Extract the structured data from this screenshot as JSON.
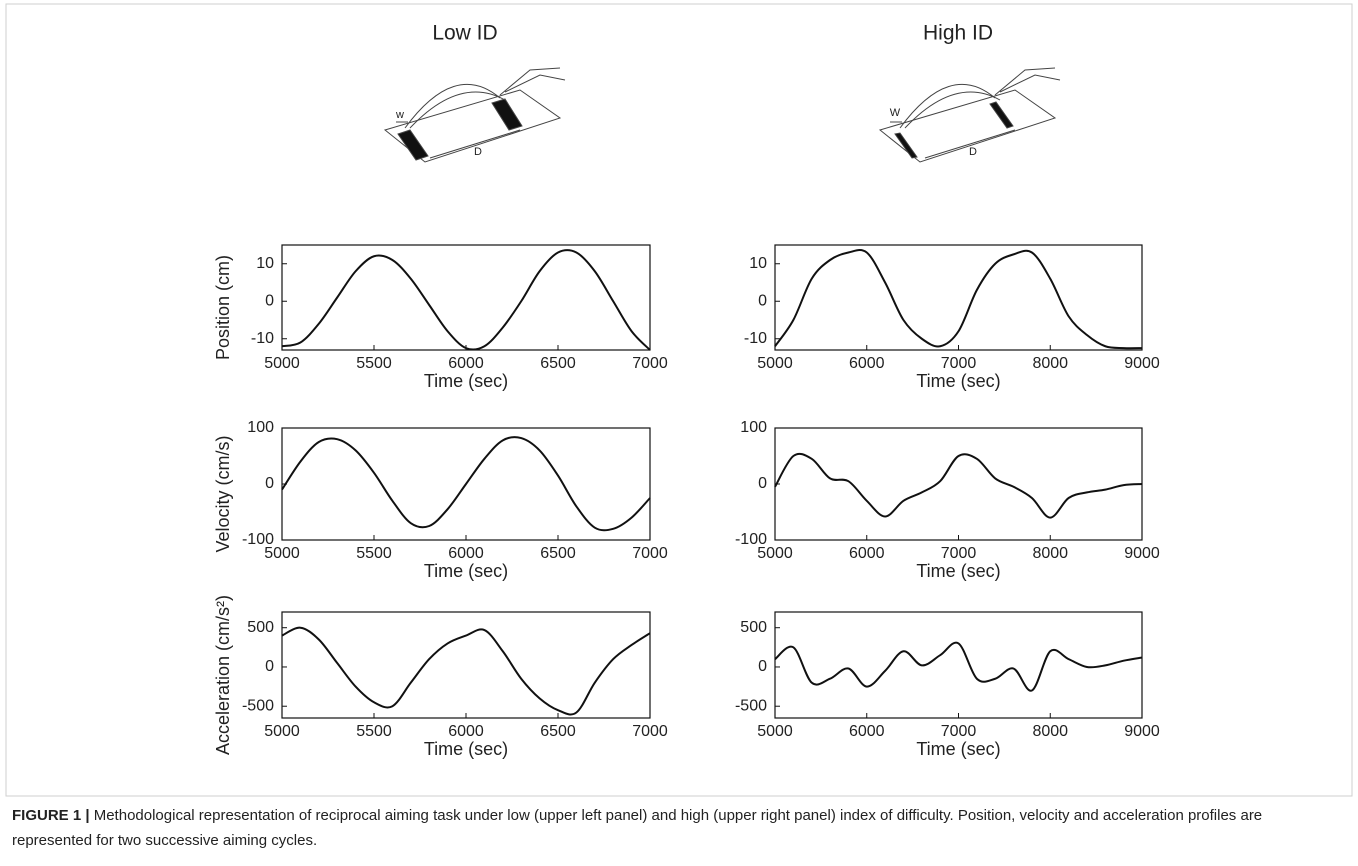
{
  "column_titles": [
    "Low ID",
    "High ID"
  ],
  "illustrations": [
    {
      "width_label": "w",
      "distance_label": "D"
    },
    {
      "width_label": "W",
      "distance_label": "D"
    }
  ],
  "caption": {
    "label": "FIGURE 1 |",
    "text": "Methodological representation of reciprocal aiming task under low (upper left panel) and high (upper right panel) index of difficulty. Position, velocity and acceleration profiles are represented for two successive aiming cycles."
  },
  "chart_data": [
    {
      "type": "line",
      "x_label": "Time (sec)",
      "y_label": "Position (cm)",
      "xlim": [
        5000,
        7000
      ],
      "xticks": [
        5000,
        5500,
        6000,
        6500,
        7000
      ],
      "ylim": [
        -13,
        15
      ],
      "yticks": [
        -10,
        0,
        10
      ],
      "x": [
        5000,
        5100,
        5200,
        5300,
        5400,
        5500,
        5600,
        5700,
        5800,
        5900,
        6000,
        6100,
        6200,
        6300,
        6400,
        6500,
        6600,
        6700,
        6800,
        6900,
        7000
      ],
      "series": [
        {
          "color": "#111111",
          "values": [
            -12,
            -11,
            -6,
            1,
            8,
            12,
            11,
            6,
            -1,
            -8,
            -12.5,
            -12,
            -7,
            0,
            8,
            13,
            13,
            8,
            0,
            -8,
            -13
          ]
        }
      ]
    },
    {
      "type": "line",
      "x_label": "Time (sec)",
      "xlim": [
        5000,
        9000
      ],
      "xticks": [
        5000,
        6000,
        7000,
        8000,
        9000
      ],
      "ylim": [
        -13,
        15
      ],
      "yticks": [
        -10,
        0,
        10
      ],
      "x": [
        5000,
        5200,
        5400,
        5600,
        5800,
        6000,
        6200,
        6400,
        6600,
        6800,
        7000,
        7200,
        7400,
        7600,
        7800,
        8000,
        8200,
        8400,
        8600,
        8800,
        9000
      ],
      "series": [
        {
          "color": "#111111",
          "values": [
            -12,
            -5,
            6,
            11,
            13,
            13,
            5,
            -5,
            -10,
            -12,
            -8,
            3,
            10,
            12.5,
            13,
            6,
            -4,
            -9,
            -12,
            -12.5,
            -12.5
          ]
        }
      ]
    },
    {
      "type": "line",
      "x_label": "Time (sec)",
      "y_label": "Velocity (cm/s)",
      "xlim": [
        5000,
        7000
      ],
      "xticks": [
        5000,
        5500,
        6000,
        6500,
        7000
      ],
      "ylim": [
        -100,
        100
      ],
      "yticks": [
        -100,
        0,
        100
      ],
      "x": [
        5000,
        5100,
        5200,
        5300,
        5400,
        5500,
        5600,
        5700,
        5800,
        5900,
        6000,
        6100,
        6200,
        6300,
        6400,
        6500,
        6600,
        6700,
        6800,
        6900,
        7000
      ],
      "series": [
        {
          "color": "#111111",
          "values": [
            -10,
            40,
            75,
            80,
            60,
            20,
            -30,
            -70,
            -75,
            -45,
            0,
            45,
            78,
            82,
            60,
            15,
            -40,
            -78,
            -80,
            -60,
            -25
          ]
        }
      ]
    },
    {
      "type": "line",
      "x_label": "Time (sec)",
      "xlim": [
        5000,
        9000
      ],
      "xticks": [
        5000,
        6000,
        7000,
        8000,
        9000
      ],
      "ylim": [
        -100,
        100
      ],
      "yticks": [
        -100,
        0,
        100
      ],
      "x": [
        5000,
        5200,
        5400,
        5600,
        5800,
        6000,
        6200,
        6400,
        6600,
        6800,
        7000,
        7200,
        7400,
        7600,
        7800,
        8000,
        8200,
        8400,
        8600,
        8800,
        9000
      ],
      "series": [
        {
          "color": "#111111",
          "values": [
            -5,
            50,
            45,
            10,
            5,
            -30,
            -58,
            -30,
            -15,
            5,
            50,
            45,
            10,
            -5,
            -25,
            -60,
            -25,
            -15,
            -10,
            -2,
            0
          ]
        }
      ]
    },
    {
      "type": "line",
      "x_label": "Time (sec)",
      "y_label": "Acceleration (cm/s²)",
      "xlim": [
        5000,
        7000
      ],
      "xticks": [
        5000,
        5500,
        6000,
        6500,
        7000
      ],
      "ylim": [
        -650,
        700
      ],
      "yticks": [
        -500,
        0,
        500
      ],
      "x": [
        5000,
        5100,
        5200,
        5300,
        5400,
        5500,
        5600,
        5700,
        5800,
        5900,
        6000,
        6100,
        6200,
        6300,
        6400,
        6500,
        6600,
        6700,
        6800,
        6900,
        7000
      ],
      "series": [
        {
          "color": "#111111",
          "values": [
            400,
            500,
            350,
            50,
            -250,
            -450,
            -500,
            -200,
            100,
            300,
            400,
            470,
            200,
            -150,
            -400,
            -550,
            -580,
            -200,
            100,
            280,
            430
          ]
        }
      ]
    },
    {
      "type": "line",
      "x_label": "Time (sec)",
      "xlim": [
        5000,
        9000
      ],
      "xticks": [
        5000,
        6000,
        7000,
        8000,
        9000
      ],
      "ylim": [
        -650,
        700
      ],
      "yticks": [
        -500,
        0,
        500
      ],
      "x": [
        5000,
        5200,
        5400,
        5600,
        5800,
        6000,
        6200,
        6400,
        6600,
        6800,
        7000,
        7200,
        7400,
        7600,
        7800,
        8000,
        8200,
        8400,
        8600,
        8800,
        9000
      ],
      "series": [
        {
          "color": "#111111",
          "values": [
            100,
            250,
            -200,
            -150,
            -20,
            -250,
            -50,
            200,
            20,
            150,
            300,
            -150,
            -150,
            -20,
            -300,
            200,
            100,
            0,
            20,
            80,
            120
          ]
        }
      ]
    }
  ]
}
